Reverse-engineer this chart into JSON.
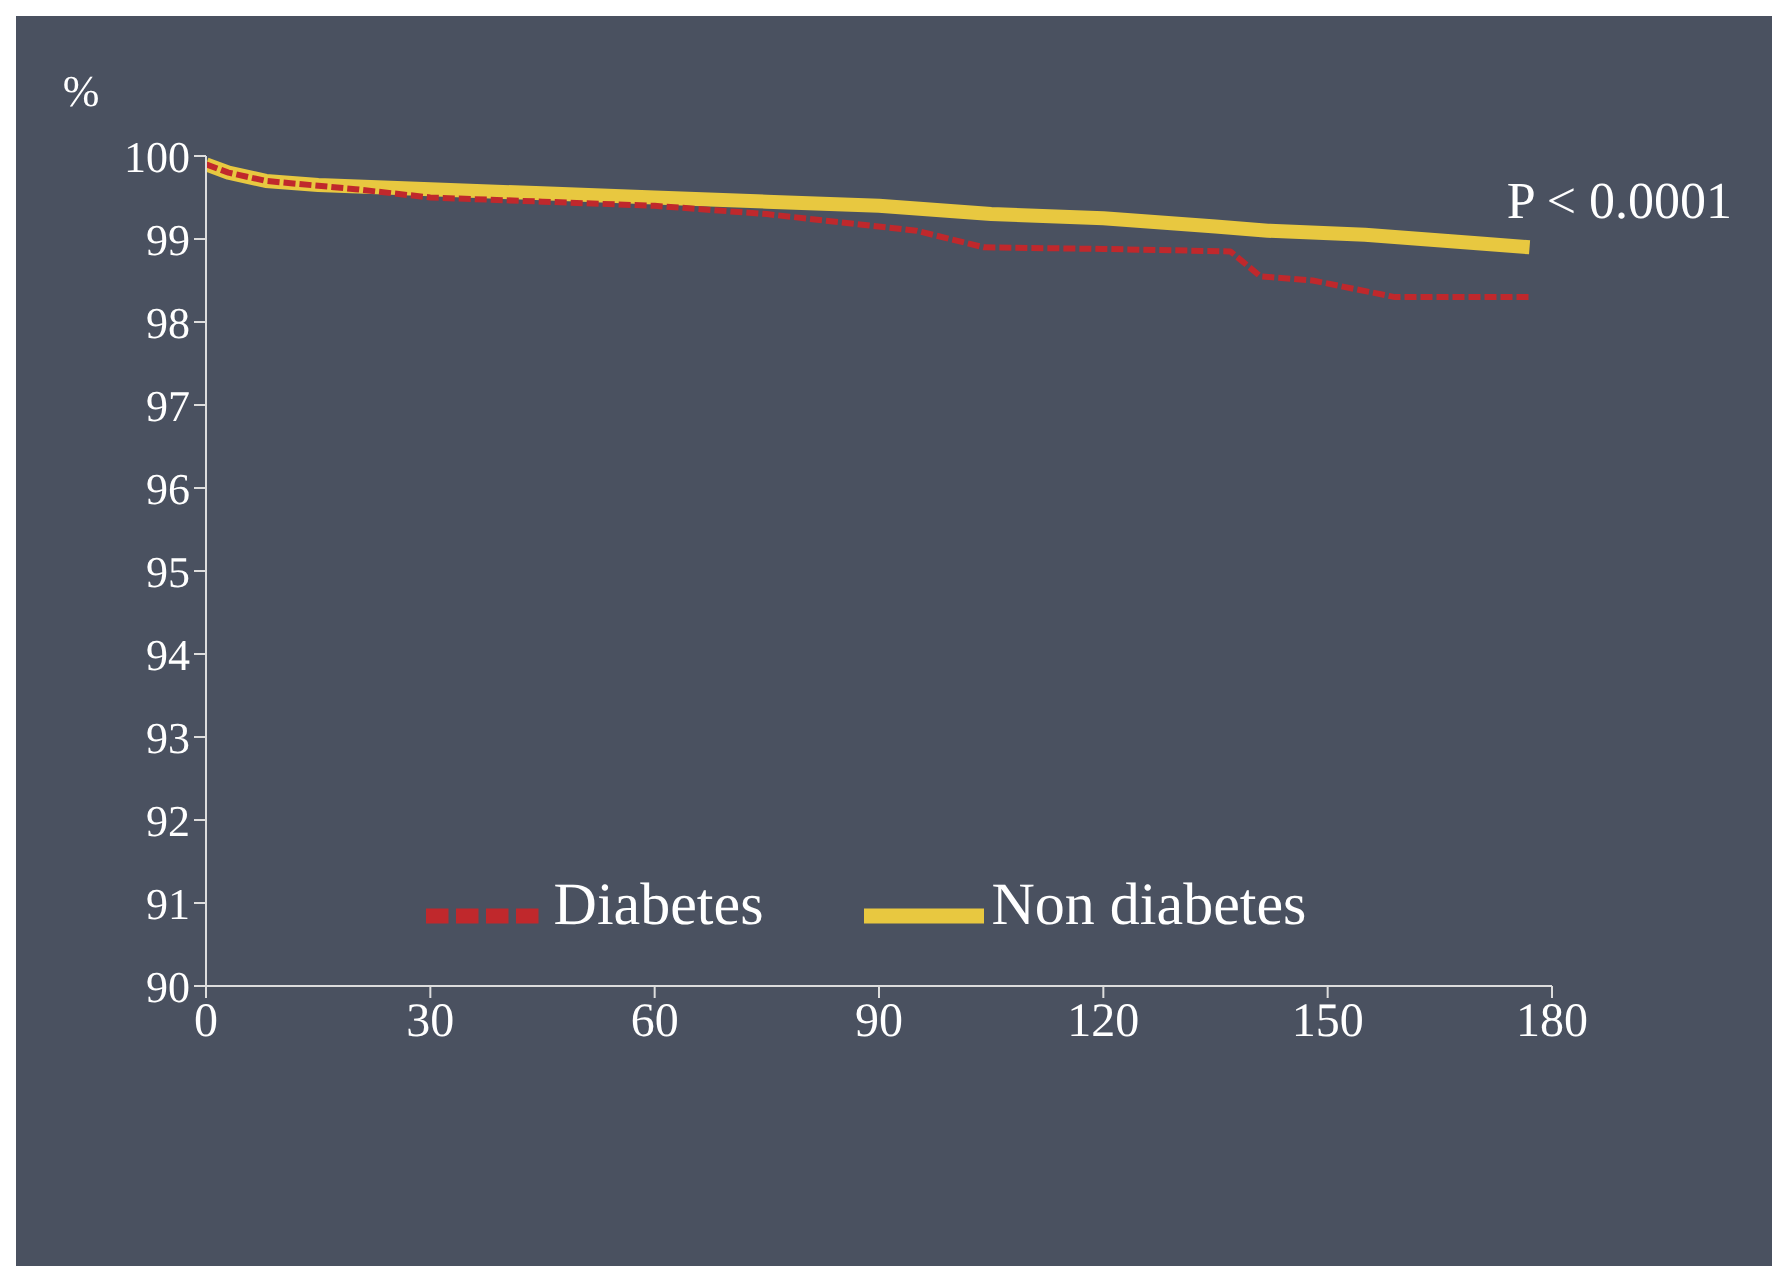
{
  "chart_data": {
    "type": "line",
    "ylabel": "%",
    "annotations": [
      "P < 0.0001"
    ],
    "xlim": [
      0,
      180
    ],
    "xticks": [
      0,
      30,
      60,
      90,
      120,
      150,
      180
    ],
    "ylim": [
      90,
      100
    ],
    "yticks": [
      90,
      91,
      92,
      93,
      94,
      95,
      96,
      97,
      98,
      99,
      100
    ],
    "grid": false,
    "legend": "bottom",
    "marker": "none",
    "series": [
      {
        "name": "Non diabetes",
        "color": "#e8c840",
        "line_style": "solid",
        "x": [
          0,
          3,
          8,
          15,
          30,
          45,
          60,
          75,
          90,
          105,
          120,
          135,
          142,
          155,
          170,
          177
        ],
        "values": [
          99.9,
          99.8,
          99.7,
          99.65,
          99.6,
          99.55,
          99.5,
          99.45,
          99.4,
          99.3,
          99.25,
          99.15,
          99.1,
          99.05,
          98.95,
          98.9
        ]
      },
      {
        "name": "Diabetes",
        "color": "#c0282c",
        "line_style": "dashed",
        "x": [
          0,
          3,
          8,
          20,
          30,
          45,
          60,
          75,
          85,
          95,
          104,
          120,
          137,
          141,
          148,
          159,
          177
        ],
        "values": [
          99.9,
          99.8,
          99.7,
          99.6,
          99.5,
          99.45,
          99.4,
          99.3,
          99.2,
          99.1,
          98.9,
          98.88,
          98.85,
          98.55,
          98.5,
          98.3,
          98.3
        ]
      }
    ]
  }
}
